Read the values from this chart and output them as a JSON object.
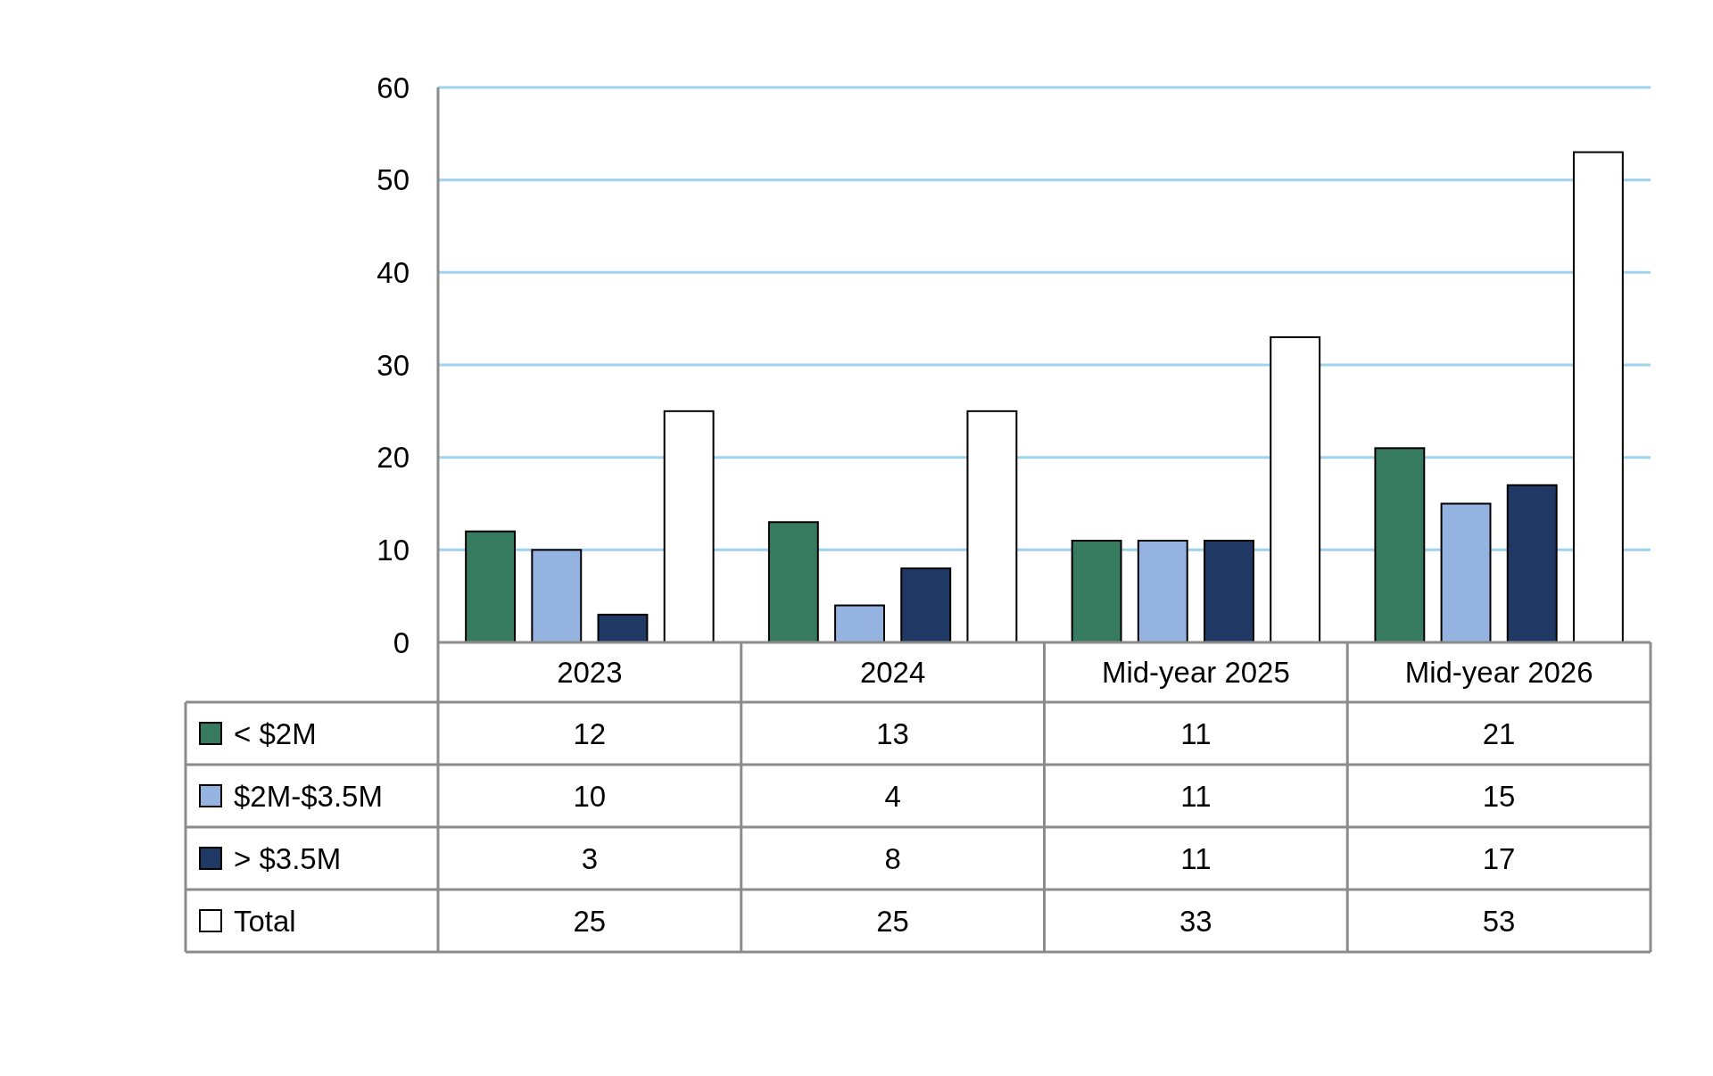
{
  "chart_data": {
    "type": "bar",
    "categories": [
      "2023",
      "2024",
      "Mid-year 2025",
      "Mid-year 2026"
    ],
    "series": [
      {
        "name": "< $2M",
        "color": "#367b5f",
        "values": [
          12,
          13,
          11,
          21
        ]
      },
      {
        "name": "$2M-$3.5M",
        "color": "#95b3e0",
        "values": [
          10,
          4,
          11,
          15
        ]
      },
      {
        "name": "> $3.5M",
        "color": "#1f3864",
        "values": [
          3,
          8,
          11,
          17
        ]
      },
      {
        "name": "Total",
        "color": "#ffffff",
        "values": [
          25,
          25,
          33,
          53
        ]
      }
    ],
    "ylim": [
      0,
      60
    ],
    "yticks": [
      0,
      10,
      20,
      30,
      40,
      50,
      60
    ],
    "grid": "y",
    "legend": "bottom",
    "data_labels": true
  }
}
